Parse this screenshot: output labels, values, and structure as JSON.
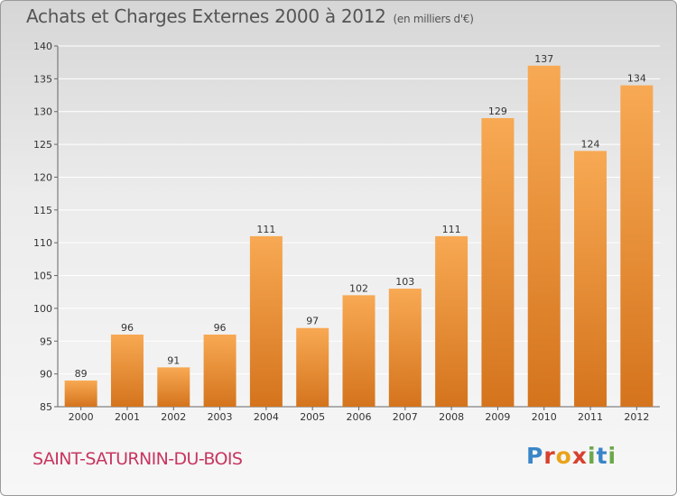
{
  "header": {
    "title": "Achats et Charges Externes 2000 à 2012",
    "unit": "(en milliers d'€)"
  },
  "footer": {
    "commune": "SAINT-SATURNIN-DU-BOIS",
    "logo": "Proxiti"
  },
  "colors": {
    "bar_light": "#f8a953",
    "bar_dark": "#d4741d",
    "commune": "#c8365f",
    "logo_letters": [
      "#3a85c8",
      "#d8402f",
      "#e9a31a",
      "#d8402f",
      "#6ba84a",
      "#3a85c8",
      "#6ba84a"
    ]
  },
  "chart_data": {
    "type": "bar",
    "title": "Achats et Charges Externes 2000 à 2012",
    "subtitle": "(en milliers d'€)",
    "xlabel": "",
    "ylabel": "",
    "categories": [
      "2000",
      "2001",
      "2002",
      "2003",
      "2004",
      "2005",
      "2006",
      "2007",
      "2008",
      "2009",
      "2010",
      "2011",
      "2012"
    ],
    "values": [
      89,
      96,
      91,
      96,
      111,
      97,
      102,
      103,
      111,
      129,
      137,
      124,
      134
    ],
    "ylim": [
      85,
      140
    ],
    "yticks": [
      85,
      90,
      95,
      100,
      105,
      110,
      115,
      120,
      125,
      130,
      135,
      140
    ],
    "grid": true,
    "data_labels": true
  }
}
